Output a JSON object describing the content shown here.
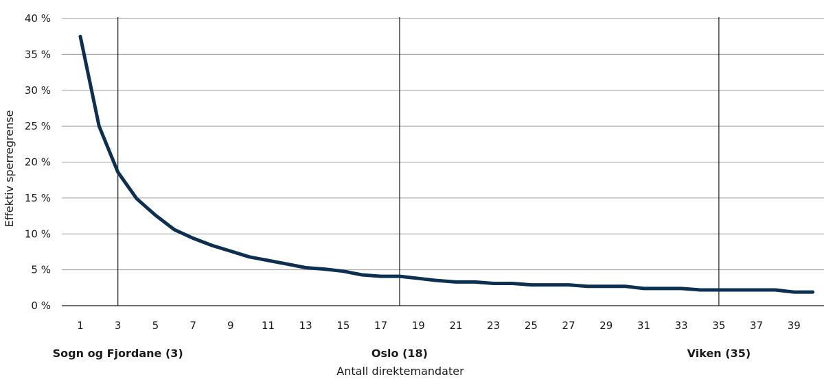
{
  "chart_data": {
    "type": "line",
    "xlabel": "Antall direktemandater",
    "ylabel": "Effektiv sperregrense",
    "xlim": [
      1,
      40
    ],
    "ylim": [
      0,
      40
    ],
    "x_ticks": [
      "1",
      "3",
      "5",
      "7",
      "9",
      "11",
      "13",
      "15",
      "17",
      "19",
      "21",
      "23",
      "25",
      "27",
      "29",
      "31",
      "33",
      "35",
      "37",
      "39"
    ],
    "y_ticks": [
      "0 %",
      "5 %",
      "10 %",
      "15 %",
      "20 %",
      "25 %",
      "30 %",
      "35 %",
      "40 %"
    ],
    "grid": true,
    "line_color": "#0d3050",
    "series": [
      {
        "x": [
          1,
          2,
          3,
          4,
          5,
          6,
          7,
          8,
          9,
          10,
          11,
          12,
          13,
          14,
          15,
          16,
          17,
          18,
          19,
          20,
          21,
          22,
          23,
          24,
          25,
          26,
          27,
          28,
          29,
          30,
          31,
          32,
          33,
          34,
          35,
          36,
          37,
          38,
          39,
          40
        ],
        "values": [
          37.5,
          25.0,
          18.6,
          14.9,
          12.6,
          10.6,
          9.4,
          8.4,
          7.6,
          6.8,
          6.3,
          5.8,
          5.3,
          5.1,
          4.8,
          4.3,
          4.1,
          4.1,
          3.8,
          3.5,
          3.3,
          3.3,
          3.1,
          3.1,
          2.9,
          2.9,
          2.9,
          2.7,
          2.7,
          2.7,
          2.4,
          2.4,
          2.4,
          2.2,
          2.2,
          2.2,
          2.2,
          2.2,
          1.9,
          1.9
        ]
      }
    ],
    "markers": [
      {
        "x": 3,
        "label": "Sogn og Fjordane (3)"
      },
      {
        "x": 18,
        "label": "Oslo (18)"
      },
      {
        "x": 35,
        "label": "Viken (35)"
      }
    ]
  }
}
